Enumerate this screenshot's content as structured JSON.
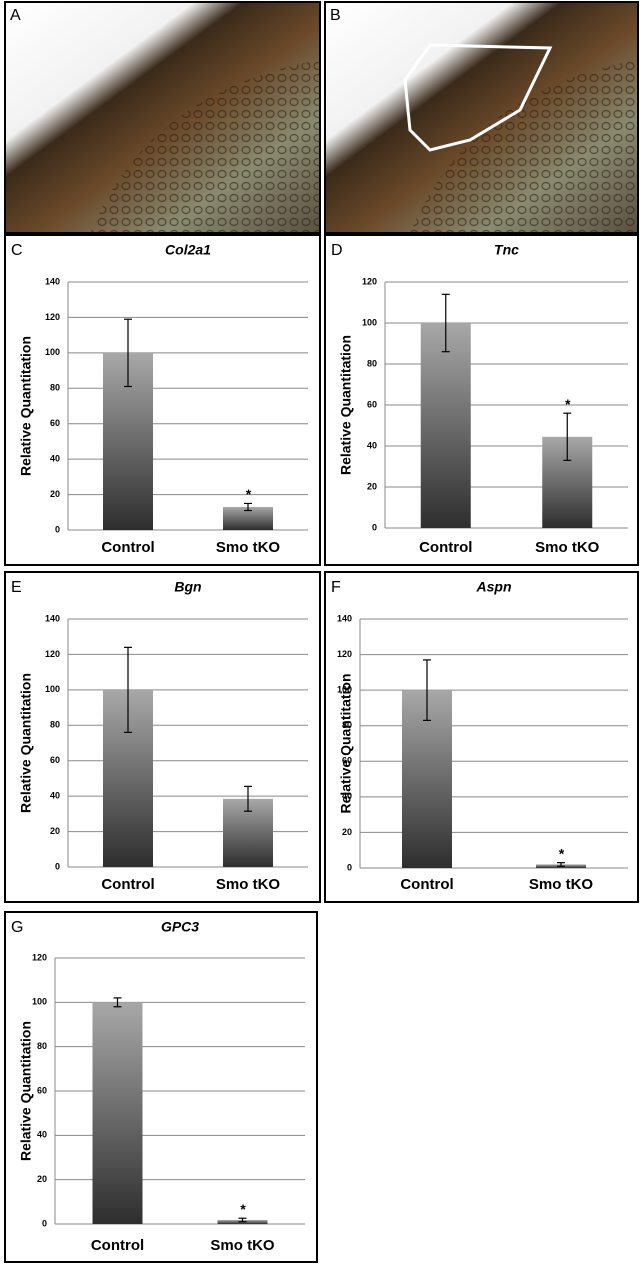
{
  "panels": [
    {
      "label": "A"
    },
    {
      "label": "B"
    }
  ],
  "chart_data": [
    {
      "type": "bar",
      "panel_label": "C",
      "title": "Col2a1",
      "ylabel": "Relative Quantitation",
      "categories": [
        "Control",
        "Smo tKO"
      ],
      "values": [
        100,
        13
      ],
      "errors": [
        19,
        2
      ],
      "annotations": [
        null,
        "*"
      ],
      "ylim": [
        0,
        140
      ],
      "yticks": [
        0,
        20,
        40,
        60,
        80,
        100,
        120,
        140
      ],
      "grid": true
    },
    {
      "type": "bar",
      "panel_label": "D",
      "title": "Tnc",
      "ylabel": "Relative Quantitation",
      "categories": [
        "Control",
        "Smo tKO"
      ],
      "values": [
        100,
        44.5
      ],
      "errors": [
        14,
        11.5
      ],
      "annotations": [
        null,
        "*"
      ],
      "ylim": [
        0,
        120
      ],
      "yticks": [
        0,
        20,
        40,
        60,
        80,
        100,
        120
      ],
      "grid": true
    },
    {
      "type": "bar",
      "panel_label": "E",
      "title": "Bgn",
      "ylabel": "Relative Quantitation",
      "categories": [
        "Control",
        "Smo tKO"
      ],
      "values": [
        100,
        38.5
      ],
      "errors": [
        24,
        7
      ],
      "annotations": [
        null,
        null
      ],
      "ylim": [
        0,
        140
      ],
      "yticks": [
        0,
        20,
        40,
        60,
        80,
        100,
        120,
        140
      ],
      "grid": true
    },
    {
      "type": "bar",
      "panel_label": "F",
      "title": "Aspn",
      "ylabel": "Relative Quantitation",
      "categories": [
        "Control",
        "Smo tKO"
      ],
      "values": [
        100,
        2
      ],
      "errors": [
        17,
        1
      ],
      "annotations": [
        null,
        "*"
      ],
      "ylim": [
        0,
        140
      ],
      "yticks": [
        0,
        20,
        40,
        60,
        80,
        100,
        120,
        140
      ],
      "grid": true
    },
    {
      "type": "bar",
      "panel_label": "G",
      "title": "GPC3",
      "ylabel": "Relative Quantitation",
      "categories": [
        "Control",
        "Smo tKO"
      ],
      "values": [
        100,
        1.8
      ],
      "errors": [
        2,
        0.8
      ],
      "annotations": [
        null,
        "*"
      ],
      "ylim": [
        0,
        120
      ],
      "yticks": [
        0,
        20,
        40,
        60,
        80,
        100,
        120
      ],
      "grid": true
    }
  ]
}
